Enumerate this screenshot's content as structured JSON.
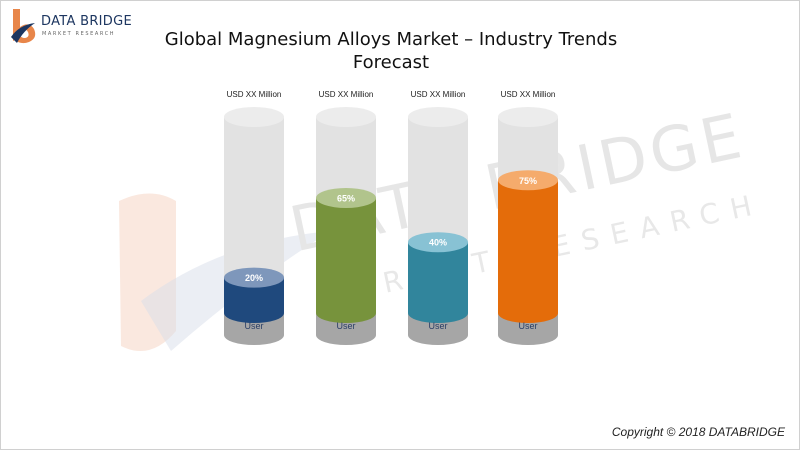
{
  "logo": {
    "name": "DATA BRIDGE",
    "tagline": "MARKET RESEARCH"
  },
  "title": "Global Magnesium Alloys Market – Industry Trends Forecast",
  "watermark": {
    "line1": "DATA BRIDGE",
    "line2": "MARKET RESEARCH"
  },
  "copyright": "Copyright © 2018 DATABRIDGE",
  "chart_data": {
    "type": "bar",
    "title": "Global Magnesium Alloys Market – Industry Trends Forecast",
    "ylim": [
      0,
      100
    ],
    "unit": "%",
    "categories": [
      "User",
      "User",
      "User",
      "User"
    ],
    "values": [
      20,
      65,
      40,
      75
    ],
    "top_labels": [
      "USD XX Million",
      "USD XX Million",
      "USD XX Million",
      "USD XX Million"
    ],
    "value_labels": [
      "20%",
      "65%",
      "40%",
      "75%"
    ],
    "colors": [
      "#1f497d",
      "#77933c",
      "#31859c",
      "#e46c0a"
    ],
    "cap_colors": [
      "#7e97bb",
      "#b1c48c",
      "#88c2d4",
      "#f5ab6c"
    ],
    "track_color": "#e2e2e2",
    "base_color": "#a6a6a6",
    "grid": false,
    "legend": "none"
  }
}
